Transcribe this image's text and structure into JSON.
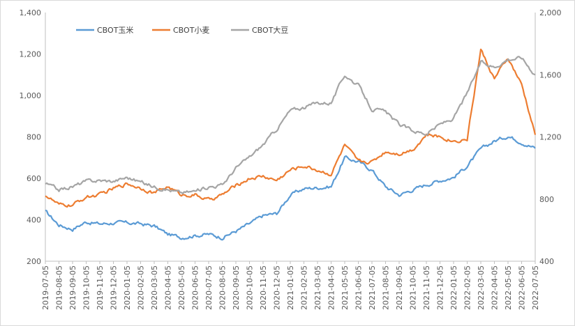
{
  "chart_data": {
    "type": "line",
    "title": "",
    "xlabel": "",
    "ylabel": "",
    "y2label": "",
    "ylim": [
      200,
      1400
    ],
    "y2lim": [
      400,
      2000
    ],
    "yticks": [
      "200",
      "400",
      "600",
      "800",
      "1,000",
      "1,200",
      "1,400"
    ],
    "y2ticks": [
      "400",
      "800",
      "1,200",
      "1,600",
      "2,000"
    ],
    "x": [
      "2019-07-05",
      "2019-08-05",
      "2019-09-05",
      "2019-10-05",
      "2019-11-05",
      "2019-12-05",
      "2020-01-05",
      "2020-02-05",
      "2020-03-05",
      "2020-04-05",
      "2020-05-05",
      "2020-06-05",
      "2020-07-05",
      "2020-08-05",
      "2020-09-05",
      "2020-10-05",
      "2020-11-05",
      "2020-12-05",
      "2021-01-05",
      "2021-02-05",
      "2021-03-05",
      "2021-04-05",
      "2021-05-05",
      "2021-06-05",
      "2021-07-05",
      "2021-08-05",
      "2021-09-05",
      "2021-10-05",
      "2021-11-05",
      "2021-12-05",
      "2022-01-05",
      "2022-02-05",
      "2022-03-05",
      "2022-04-05",
      "2022-05-05",
      "2022-06-05",
      "2022-07-05"
    ],
    "legend_position": "top-left",
    "series": [
      {
        "name": "CBOT玉米",
        "axis": "left",
        "color": "#5b9bd5",
        "values": [
          440,
          375,
          355,
          390,
          380,
          385,
          385,
          380,
          370,
          330,
          315,
          325,
          330,
          315,
          345,
          380,
          420,
          430,
          520,
          550,
          555,
          560,
          700,
          680,
          640,
          560,
          520,
          545,
          570,
          590,
          605,
          660,
          740,
          780,
          805,
          775,
          745
        ]
      },
      {
        "name": "CBOT小麦",
        "axis": "left",
        "color": "#ed7d31",
        "values": [
          520,
          470,
          470,
          510,
          520,
          550,
          575,
          555,
          530,
          560,
          520,
          520,
          495,
          520,
          565,
          600,
          610,
          590,
          640,
          660,
          640,
          620,
          760,
          680,
          680,
          730,
          720,
          740,
          810,
          800,
          780,
          790,
          1220,
          1080,
          1180,
          1050,
          810
        ]
      },
      {
        "name": "CBOT大豆",
        "axis": "right",
        "color": "#a5a5a5",
        "values": [
          900,
          860,
          880,
          915,
          920,
          915,
          940,
          910,
          880,
          860,
          840,
          850,
          880,
          890,
          1000,
          1070,
          1150,
          1250,
          1370,
          1390,
          1420,
          1420,
          1600,
          1530,
          1380,
          1360,
          1280,
          1240,
          1220,
          1280,
          1320,
          1480,
          1680,
          1650,
          1700,
          1710,
          1600
        ]
      }
    ]
  }
}
